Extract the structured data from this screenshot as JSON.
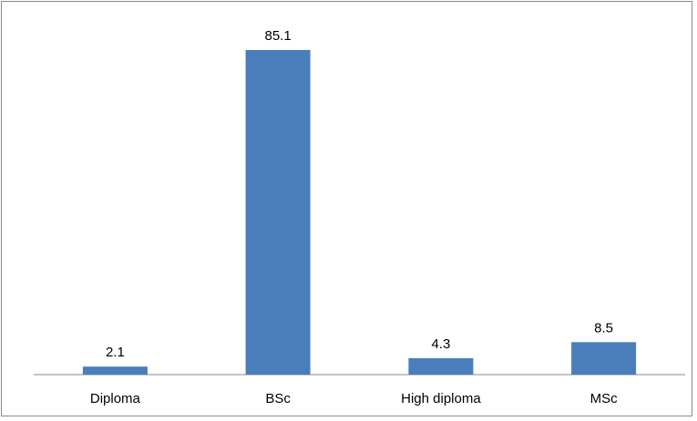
{
  "chart_data": {
    "type": "bar",
    "categories": [
      "Diploma",
      "BSc",
      "High diploma",
      "MSc"
    ],
    "values": [
      2.1,
      85.1,
      4.3,
      8.5
    ],
    "data_labels": [
      "2.1",
      "85.1",
      "4.3",
      "8.5"
    ],
    "title": "",
    "xlabel": "",
    "ylabel": "",
    "ylim": [
      0,
      85.1
    ],
    "grid": false,
    "legend": "none",
    "bar_color": "#4a7ebb",
    "axis_color": "#898989",
    "border_color": "#898989"
  }
}
